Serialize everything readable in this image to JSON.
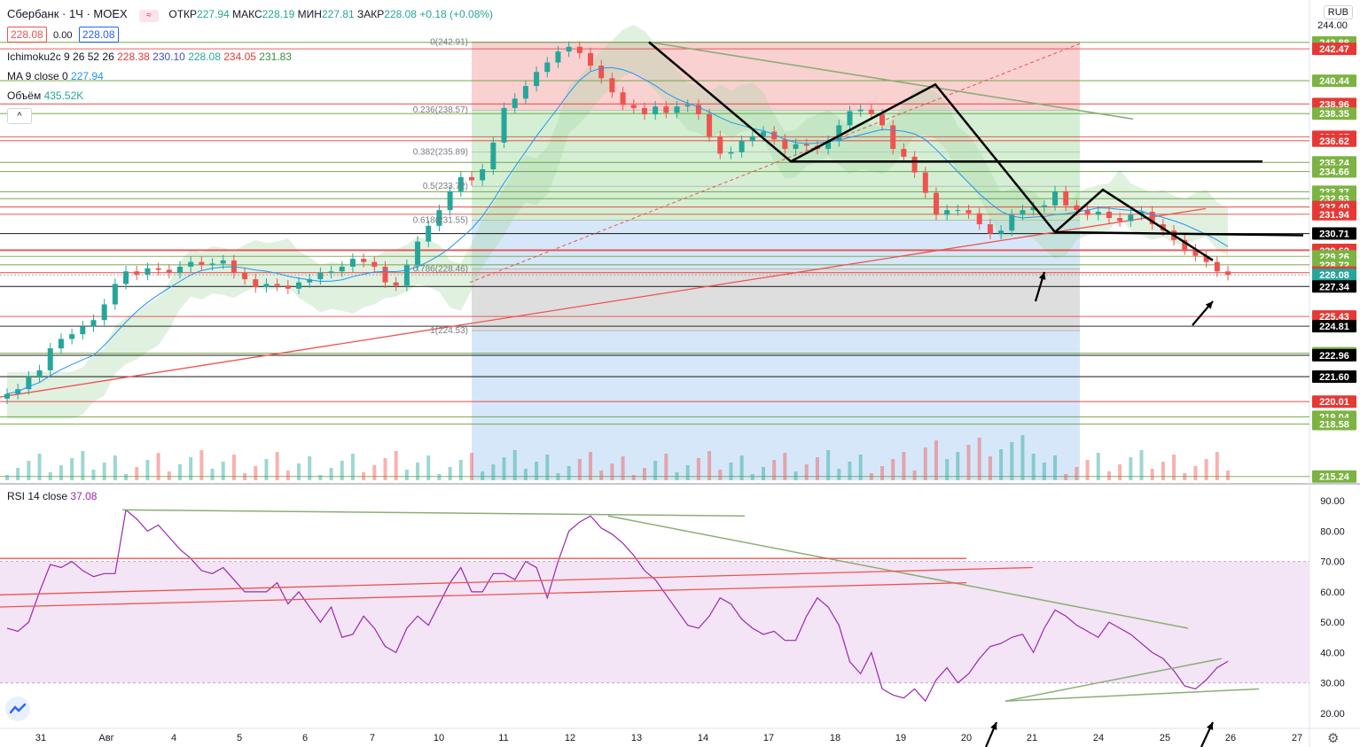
{
  "header": {
    "symbol": "Сбербанк · 1Ч · MOEX",
    "open_label": "ОТКР",
    "open": "227.94",
    "high_label": "МАКС",
    "high": "228.19",
    "low_label": "МИН",
    "low": "227.81",
    "close_label": "ЗАКР",
    "close": "228.08",
    "change": "+0.18 (+0.08%)",
    "bid": "228.08",
    "spread": "0.00",
    "ask": "228.08"
  },
  "indicators": {
    "ichimoku_label": "Ichimoku2c 9 26 52 26",
    "ichimoku_values": [
      "228.38",
      "230.10",
      "228.08",
      "234.05",
      "231.83"
    ],
    "ma_label": "MA 9 close 0",
    "ma_value": "227.94",
    "volume_label": "Объём",
    "volume_value": "435.52K",
    "rsi_label": "RSI 14 close",
    "rsi_value": "37.08",
    "collapse": "^"
  },
  "currency": "RUB",
  "colors": {
    "up": "#26a69a",
    "down": "#ef5350",
    "red_line": "#e53935",
    "green_line": "#689f38",
    "black_line": "#000000",
    "fib_red": "#f8c9c9",
    "fib_green": "#cdeccd",
    "fib_blue": "#cfe3f8",
    "rsi": "#9c27b0",
    "rsi_band": "#f3e5f5",
    "last_price": "#26a69a"
  },
  "chart_data": [
    {
      "type": "candlestick",
      "title": "Сбербанк · 1Ч · MOEX",
      "ylim": [
        215.0,
        244.0
      ],
      "y_ticks": [
        "244.00"
      ],
      "price_labels": [
        {
          "value": "242.88",
          "kind": "green"
        },
        {
          "value": "242.47",
          "kind": "red"
        },
        {
          "value": "240.44",
          "kind": "green"
        },
        {
          "value": "238.96",
          "kind": "red"
        },
        {
          "value": "238.35",
          "kind": "green"
        },
        {
          "value": "236.87",
          "kind": "red"
        },
        {
          "value": "236.62",
          "kind": "red"
        },
        {
          "value": "235.24",
          "kind": "green"
        },
        {
          "value": "234.66",
          "kind": "green"
        },
        {
          "value": "233.37",
          "kind": "green"
        },
        {
          "value": "232.93",
          "kind": "green"
        },
        {
          "value": "232.40",
          "kind": "red"
        },
        {
          "value": "231.94",
          "kind": "red"
        },
        {
          "value": "230.71",
          "kind": "black"
        },
        {
          "value": "229.67",
          "kind": "red"
        },
        {
          "value": "229.62",
          "kind": "red"
        },
        {
          "value": "229.26",
          "kind": "green"
        },
        {
          "value": "228.72",
          "kind": "green"
        },
        {
          "value": "228.22",
          "kind": "red"
        },
        {
          "value": "228.08",
          "kind": "last"
        },
        {
          "value": "227.34",
          "kind": "black"
        },
        {
          "value": "225.43",
          "kind": "red"
        },
        {
          "value": "224.81",
          "kind": "black"
        },
        {
          "value": "223.09",
          "kind": "green"
        },
        {
          "value": "222.96",
          "kind": "black"
        },
        {
          "value": "221.60",
          "kind": "black"
        },
        {
          "value": "220.01",
          "kind": "red"
        },
        {
          "value": "219.04",
          "kind": "green"
        },
        {
          "value": "218.58",
          "kind": "green"
        },
        {
          "value": "215.24",
          "kind": "green"
        }
      ],
      "fib_levels": [
        {
          "label": "0(242.91)",
          "value": 242.91
        },
        {
          "label": "0.236(238.57)",
          "value": 238.57
        },
        {
          "label": "0.382(235.89)",
          "value": 235.89
        },
        {
          "label": "0.5(233.72)",
          "value": 233.72
        },
        {
          "label": "0.618(231.55)",
          "value": 231.55
        },
        {
          "label": "0.786(228.46)",
          "value": 228.46
        },
        {
          "label": "1(224.53)",
          "value": 224.53
        }
      ],
      "x_ticks": [
        "31",
        "Авг",
        "4",
        "5",
        "6",
        "7",
        "10",
        "11",
        "12",
        "13",
        "14",
        "17",
        "18",
        "19",
        "20",
        "21",
        "24",
        "25",
        "26",
        "27"
      ],
      "close_series": [
        220.5,
        220.8,
        221.6,
        222.0,
        223.4,
        224.0,
        224.3,
        224.8,
        225.2,
        226.2,
        227.5,
        228.3,
        228.1,
        228.5,
        228.4,
        228.2,
        228.6,
        228.9,
        228.7,
        228.8,
        229.0,
        228.2,
        227.8,
        227.3,
        227.5,
        227.4,
        227.2,
        227.6,
        227.8,
        228.2,
        228.3,
        228.6,
        229.1,
        228.9,
        228.6,
        227.6,
        227.4,
        228.7,
        230.2,
        231.2,
        232.2,
        233.4,
        234.3,
        234.1,
        234.8,
        236.5,
        238.7,
        239.3,
        240.1,
        241.0,
        241.6,
        242.3,
        242.6,
        242.2,
        241.4,
        240.6,
        239.7,
        238.9,
        238.7,
        238.3,
        238.8,
        238.4,
        238.8,
        238.9,
        238.3,
        236.9,
        235.8,
        235.9,
        236.6,
        236.9,
        237.2,
        236.7,
        236.1,
        236.4,
        236.3,
        236.1,
        236.6,
        237.6,
        238.5,
        238.6,
        238.3,
        237.6,
        236.1,
        235.6,
        234.6,
        233.3,
        231.9,
        232.2,
        232.2,
        232.0,
        231.3,
        230.7,
        230.9,
        231.9,
        232.2,
        232.4,
        232.5,
        233.4,
        232.5,
        232.2,
        231.9,
        232.1,
        231.7,
        231.5,
        231.9,
        232.1,
        231.3,
        230.9,
        230.3,
        229.7,
        229.3,
        228.9,
        228.3,
        228.08
      ],
      "rsi": {
        "ylim": [
          15,
          95
        ],
        "y_ticks": [
          "90.00",
          "80.00",
          "70.00",
          "60.00",
          "50.00",
          "40.00",
          "30.00",
          "20.00"
        ],
        "band": [
          30,
          70
        ],
        "values": [
          48,
          47,
          50,
          60,
          69,
          68,
          70,
          67,
          65,
          66,
          66,
          87,
          84,
          80,
          82,
          78,
          74,
          71,
          67,
          66,
          68,
          64,
          60,
          60,
          60,
          63,
          56,
          60,
          55,
          50,
          55,
          45,
          46,
          52,
          48,
          42,
          40,
          48,
          52,
          49,
          56,
          63,
          68,
          60,
          60,
          66,
          66,
          64,
          70,
          68,
          58,
          70,
          80,
          83,
          85,
          81,
          79,
          76,
          72,
          67,
          64,
          59,
          54,
          49,
          48,
          52,
          58,
          56,
          51,
          48,
          46,
          47,
          44,
          44,
          52,
          58,
          55,
          49,
          37,
          33,
          40,
          28,
          26,
          25,
          28,
          24,
          31,
          35,
          30,
          33,
          38,
          42,
          43,
          45,
          46,
          40,
          48,
          54,
          52,
          49,
          47,
          45,
          50,
          48,
          46,
          43,
          40,
          38,
          34,
          29,
          28,
          31,
          35,
          37.08
        ]
      }
    }
  ]
}
